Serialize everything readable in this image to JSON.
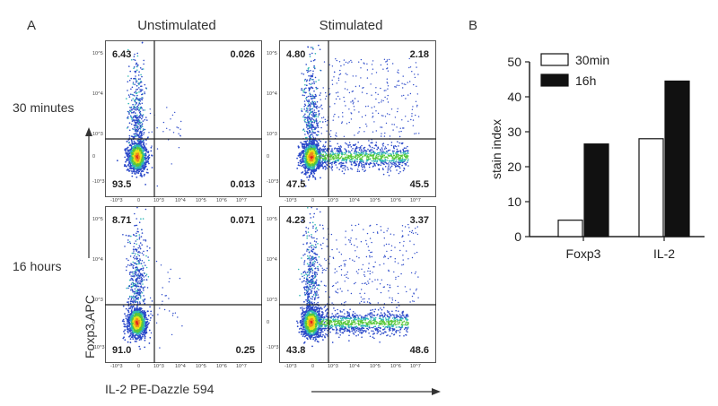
{
  "panel_labels": {
    "a": "A",
    "b": "B"
  },
  "columns": [
    "Unstimulated",
    "Stimulated"
  ],
  "rows": [
    "30 minutes",
    "16 hours"
  ],
  "flow_axes": {
    "xlabel": "IL-2 PE-Dazzle 594",
    "ylabel": "Foxp3 APC",
    "y_ticks": [
      "10^5",
      "10^4",
      "10^3",
      "0",
      "-10^3"
    ],
    "x_ticks": [
      "-10^3",
      "0",
      "10^3",
      "10^4",
      "10^5",
      "10^6",
      "10^7"
    ]
  },
  "flow_plots": [
    {
      "row": "30 minutes",
      "column": "Unstimulated",
      "q_ul": "6.43",
      "q_ur": "0.026",
      "q_ll": "93.5",
      "q_lr": "0.013"
    },
    {
      "row": "30 minutes",
      "column": "Stimulated",
      "q_ul": "4.80",
      "q_ur": "2.18",
      "q_ll": "47.5",
      "q_lr": "45.5"
    },
    {
      "row": "16 hours",
      "column": "Unstimulated",
      "q_ul": "8.71",
      "q_ur": "0.071",
      "q_ll": "91.0",
      "q_lr": "0.25"
    },
    {
      "row": "16 hours",
      "column": "Stimulated",
      "q_ul": "4.23",
      "q_ur": "3.37",
      "q_ll": "43.8",
      "q_lr": "48.6"
    }
  ],
  "chart_data": [
    {
      "type": "scatter",
      "title": "",
      "xlabel": "IL-2 PE-Dazzle 594",
      "ylabel": "Foxp3 APC",
      "panels": [
        {
          "row": "30 minutes",
          "column": "Unstimulated",
          "quadrants": {
            "upper_left": 6.43,
            "upper_right": 0.026,
            "lower_left": 93.5,
            "lower_right": 0.013
          }
        },
        {
          "row": "30 minutes",
          "column": "Stimulated",
          "quadrants": {
            "upper_left": 4.8,
            "upper_right": 2.18,
            "lower_left": 47.5,
            "lower_right": 45.5
          }
        },
        {
          "row": "16 hours",
          "column": "Unstimulated",
          "quadrants": {
            "upper_left": 8.71,
            "upper_right": 0.071,
            "lower_left": 91.0,
            "lower_right": 0.25
          }
        },
        {
          "row": "16 hours",
          "column": "Stimulated",
          "quadrants": {
            "upper_left": 4.23,
            "upper_right": 3.37,
            "lower_left": 43.8,
            "lower_right": 48.6
          }
        }
      ]
    },
    {
      "type": "bar",
      "title": "",
      "categories": [
        "Foxp3",
        "IL-2"
      ],
      "series": [
        {
          "name": "30min",
          "values": [
            4.7,
            28.0
          ],
          "color": "#ffffff"
        },
        {
          "name": "16h",
          "values": [
            26.5,
            44.5
          ],
          "color": "#111111"
        }
      ],
      "xlabel": "",
      "ylabel": "stain index",
      "ylim": [
        0,
        50
      ],
      "yticks": [
        0,
        10,
        20,
        30,
        40,
        50
      ],
      "legend": "top-left",
      "grid": false
    }
  ]
}
